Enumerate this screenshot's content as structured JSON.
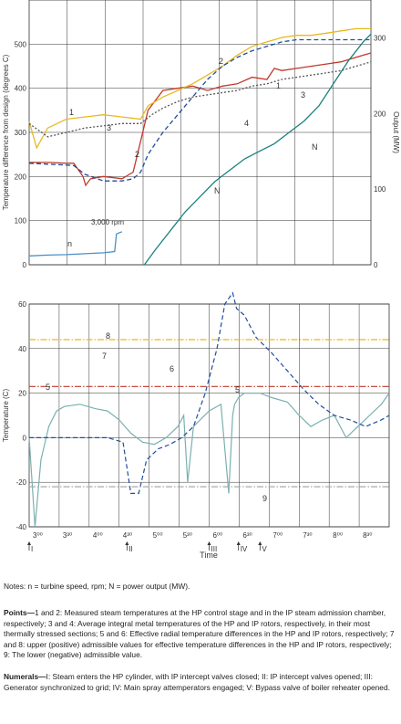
{
  "chart_data": [
    {
      "type": "line",
      "ylabel_left": "Temperature  difference from design (degrees C)",
      "ylabel_right": "Output (MW)",
      "ylim_left": [
        0,
        600
      ],
      "ylim_right": [
        0,
        350
      ],
      "yticks_left": [
        "0",
        "100",
        "200",
        "300",
        "400",
        "500"
      ],
      "yticks_right": [
        "0",
        "100",
        "200",
        "300"
      ],
      "grid": true,
      "series": [
        {
          "name": "1",
          "axis": "left",
          "color": "#c0392b",
          "style": "solid",
          "x": [
            0,
            0.5,
            1,
            1.2,
            1.45,
            1.52,
            1.65,
            2.0,
            2.5,
            2.8,
            3.0,
            3.2,
            3.6,
            4.0,
            4.4,
            4.8,
            5.2,
            5.6,
            6.0,
            6.4,
            6.6,
            6.8,
            7.2,
            7.6,
            8.0,
            8.4,
            8.8,
            9.2
          ],
          "y": [
            232,
            232,
            230,
            230,
            200,
            180,
            195,
            200,
            195,
            210,
            280,
            350,
            395,
            400,
            405,
            395,
            405,
            410,
            425,
            420,
            445,
            440,
            445,
            450,
            455,
            460,
            470,
            480
          ]
        },
        {
          "name": "2",
          "axis": "left",
          "color": "#e8b923",
          "style": "solid",
          "x": [
            0,
            0.2,
            0.5,
            1.0,
            1.5,
            2.0,
            2.5,
            3.0,
            3.2,
            3.6,
            4.0,
            4.4,
            4.8,
            5.2,
            5.6,
            6.0,
            6.4,
            6.8,
            7.2,
            7.6,
            8.0,
            8.4,
            8.8,
            9.2
          ],
          "y": [
            325,
            265,
            310,
            330,
            335,
            340,
            335,
            330,
            360,
            380,
            395,
            410,
            430,
            450,
            475,
            495,
            505,
            515,
            520,
            520,
            525,
            530,
            535,
            535
          ]
        },
        {
          "name": "3",
          "axis": "left",
          "color": "#555555",
          "style": "dotted",
          "x": [
            0,
            0.5,
            1.0,
            1.5,
            2.0,
            2.5,
            3.0,
            3.3,
            3.6,
            4.0,
            4.4,
            4.8,
            5.2,
            5.6,
            6.0,
            6.4,
            6.8,
            7.2,
            7.6,
            8.0,
            8.4,
            8.8,
            9.2
          ],
          "y": [
            320,
            290,
            300,
            310,
            315,
            320,
            320,
            340,
            355,
            370,
            380,
            385,
            390,
            395,
            405,
            410,
            420,
            425,
            430,
            435,
            440,
            450,
            460
          ]
        },
        {
          "name": "4",
          "axis": "left",
          "color": "#1f4e9c",
          "style": "dashed",
          "x": [
            0,
            0.5,
            1.0,
            1.2,
            1.5,
            2.0,
            2.5,
            2.8,
            3.0,
            3.2,
            3.6,
            4.0,
            4.4,
            4.8,
            5.2,
            5.6,
            6.0,
            6.4,
            6.8,
            7.2,
            7.6,
            8.0,
            8.4,
            8.8,
            9.2
          ],
          "y": [
            230,
            228,
            226,
            225,
            205,
            190,
            190,
            195,
            210,
            250,
            300,
            340,
            380,
            420,
            450,
            470,
            485,
            495,
            505,
            510,
            510,
            510,
            510,
            510,
            510
          ]
        },
        {
          "name": "N",
          "axis": "right",
          "color": "#1a8080",
          "style": "solid",
          "x": [
            3.1,
            3.4,
            3.8,
            4.2,
            4.6,
            5.0,
            5.4,
            5.8,
            6.2,
            6.6,
            7.0,
            7.4,
            7.8,
            8.2,
            8.6,
            9.0,
            9.2
          ],
          "y": [
            0,
            20,
            45,
            70,
            90,
            110,
            125,
            140,
            150,
            160,
            175,
            190,
            210,
            240,
            270,
            295,
            305
          ]
        },
        {
          "name": "n",
          "axis": "left",
          "color": "#4a90c8",
          "style": "solid",
          "x": [
            0,
            0.5,
            1.0,
            1.5,
            2.0,
            2.3,
            2.35,
            2.5
          ],
          "y": [
            20,
            22,
            23,
            25,
            27,
            30,
            70,
            75
          ]
        }
      ],
      "labels": [
        "1",
        "2",
        "3",
        "4",
        "N",
        "n",
        "3,000 rpm"
      ]
    },
    {
      "type": "line",
      "ylabel": "Temperature (C)",
      "xlabel": "Time",
      "ylim": [
        -40,
        60
      ],
      "yticks": [
        "-40",
        "-20",
        "0",
        "20",
        "40",
        "60"
      ],
      "xticks": [
        "3⁰⁰",
        "3³⁰",
        "4⁰⁰",
        "4³⁰",
        "5⁰⁰",
        "5³⁰",
        "6⁰⁰",
        "6³⁰",
        "7⁰⁰",
        "7³⁰",
        "8⁰⁰",
        "8³⁰"
      ],
      "grid": true,
      "markers": [
        {
          "label": "I",
          "x": 0
        },
        {
          "label": "II",
          "x": 2.5
        },
        {
          "label": "III",
          "x": 4.6
        },
        {
          "label": "IV",
          "x": 5.35
        },
        {
          "label": "V",
          "x": 5.9
        }
      ],
      "series": [
        {
          "name": "5",
          "color": "#7ab0b0",
          "style": "solid",
          "x": [
            0,
            0.15,
            0.3,
            0.5,
            0.7,
            0.9,
            1.3,
            1.7,
            2.0,
            2.3,
            2.6,
            2.9,
            3.2,
            3.5,
            3.8,
            3.95,
            4.05,
            4.2,
            4.6,
            4.9,
            5.1,
            5.2,
            5.25,
            5.35,
            5.5,
            5.9,
            6.2,
            6.6,
            6.9,
            7.2,
            7.5,
            7.8,
            8.1,
            8.4,
            8.7,
            9.0,
            9.2
          ],
          "y": [
            0,
            -40,
            -10,
            5,
            12,
            14,
            15,
            13,
            12,
            8,
            2,
            -2,
            -3,
            0,
            5,
            10,
            -20,
            5,
            12,
            15,
            -25,
            10,
            15,
            18,
            20,
            20,
            18,
            16,
            10,
            5,
            8,
            10,
            0,
            5,
            10,
            15,
            20
          ]
        },
        {
          "name": "6",
          "color": "#1f4e9c",
          "style": "dashed",
          "x": [
            0,
            1.0,
            2.0,
            2.4,
            2.6,
            2.8,
            3.0,
            3.3,
            3.6,
            3.9,
            4.2,
            4.5,
            4.8,
            5.0,
            5.2,
            5.3,
            5.5,
            5.8,
            6.2,
            6.6,
            7.0,
            7.4,
            7.8,
            8.2,
            8.6,
            9.0,
            9.2
          ],
          "y": [
            0,
            0,
            0,
            -2,
            -25,
            -25,
            -10,
            -5,
            -3,
            0,
            5,
            20,
            40,
            60,
            65,
            58,
            55,
            45,
            38,
            30,
            22,
            15,
            10,
            8,
            5,
            8,
            10
          ]
        },
        {
          "name": "7",
          "color": "#c0392b",
          "style": "dash-dot",
          "x": [
            0,
            9.2
          ],
          "y": [
            23,
            23
          ]
        },
        {
          "name": "8",
          "color": "#e8b923",
          "style": "dash-dot",
          "x": [
            0,
            9.2
          ],
          "y": [
            44,
            44
          ]
        },
        {
          "name": "9",
          "color": "#aaaaaa",
          "style": "dash-dot",
          "x": [
            0,
            9.2
          ],
          "y": [
            -22,
            -22
          ]
        }
      ]
    }
  ],
  "top_labels": {
    "l1": "1",
    "l2": "2",
    "l3": "3",
    "l4": "4",
    "l1b": "1",
    "l2b": "2",
    "l3b": "3",
    "lN": "N",
    "lN2": "N",
    "ln": "n",
    "rpm": "3,000 rpm",
    "ylab": "Temperature  difference from design (degrees C)",
    "ylab_r": "Output (MW)"
  },
  "bottom_labels": {
    "l5": "5",
    "l5b": "5",
    "l6": "6",
    "l7": "7",
    "l8": "8",
    "l9": "9",
    "ylab": "Temperature (C)",
    "xlab": "Time"
  },
  "notes": {
    "n1": "Notes: n = turbine speed, rpm; N = power output (MW).",
    "p_title": "Points—",
    "p_text": "1 and 2: Measured steam temperatures at the HP control stage and in the IP steam admission chamber, respectively; 3 and 4: Average integral metal temperatures of the HP and IP rotors, respectively, in their most thermally stressed sections; 5 and 6: Effective radial temperature differences in the HP and IP rotors, respectively; 7 and 8: upper (positive) admissible values for effective temperature differences in the HP and IP rotors, respectively; 9: The lower (negative) admissible value.",
    "m_title": "Numerals—",
    "m_text": "I: Steam enters the HP cylinder, with IP intercept valves closed; II: IP intercept valves opened; III: Generator synchronized to grid; IV: Main spray attemperators engaged; V: Bypass valve of boiler reheater opened."
  }
}
